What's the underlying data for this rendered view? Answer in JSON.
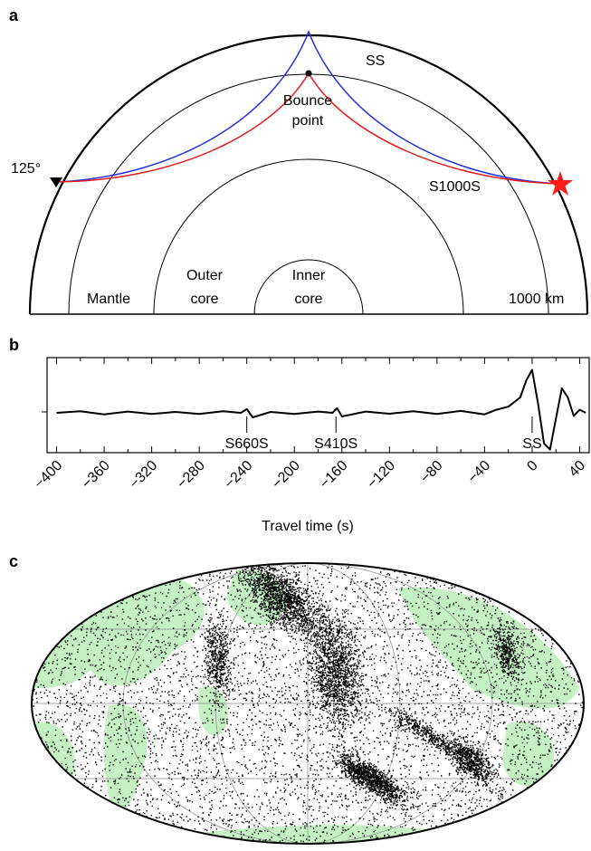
{
  "panel_a": {
    "panel_label": "a",
    "ray_ss": "SS",
    "bounce_point": [
      "Bounce",
      "point"
    ],
    "distance": "125°",
    "ray_s1000s": "S1000S",
    "mantle": "Mantle",
    "outer_core": [
      "Outer",
      "core"
    ],
    "inner_core": [
      "Inner",
      "core"
    ],
    "depth": "1000 km"
  },
  "chart_data": {
    "type": "line",
    "panel_label": "b",
    "x_label": "Travel time (s)",
    "x": [
      -400,
      -380,
      -360,
      -340,
      -320,
      -300,
      -280,
      -260,
      -245,
      -240,
      -235,
      -220,
      -200,
      -180,
      -168,
      -164,
      -160,
      -140,
      -120,
      -100,
      -80,
      -60,
      -40,
      -30,
      -20,
      -10,
      -5,
      0,
      5,
      10,
      15,
      20,
      25,
      30,
      35,
      40,
      45
    ],
    "values": [
      0.0,
      0.05,
      -0.05,
      0.04,
      -0.04,
      0.03,
      -0.04,
      0.05,
      0.0,
      0.12,
      -0.15,
      0.03,
      -0.04,
      0.04,
      0.0,
      0.15,
      -0.12,
      0.04,
      -0.03,
      0.05,
      -0.04,
      0.06,
      -0.05,
      0.1,
      0.2,
      0.5,
      1.05,
      1.4,
      0.3,
      -1.0,
      -1.2,
      -0.2,
      0.8,
      0.5,
      -0.1,
      0.1,
      0.0
    ],
    "color": "#000000",
    "xlim": [
      -408,
      48
    ],
    "ylim": [
      -1.3,
      1.8
    ],
    "xticks": [
      {
        "value": -400,
        "label": "−400"
      },
      {
        "value": -360,
        "label": "−360"
      },
      {
        "value": -320,
        "label": "−320"
      },
      {
        "value": -280,
        "label": "−280"
      },
      {
        "value": -240,
        "label": "−240"
      },
      {
        "value": -200,
        "label": "−200"
      },
      {
        "value": -160,
        "label": "−160"
      },
      {
        "value": -120,
        "label": "−120"
      },
      {
        "value": -80,
        "label": "−80"
      },
      {
        "value": -40,
        "label": "−40"
      },
      0,
      40
    ],
    "annotations": [
      {
        "label": "S660S",
        "x": -240
      },
      {
        "label": "S410S",
        "x": -165
      },
      {
        "label": "SS",
        "x": 0
      }
    ]
  },
  "panel_c": {
    "panel_label": "c"
  }
}
